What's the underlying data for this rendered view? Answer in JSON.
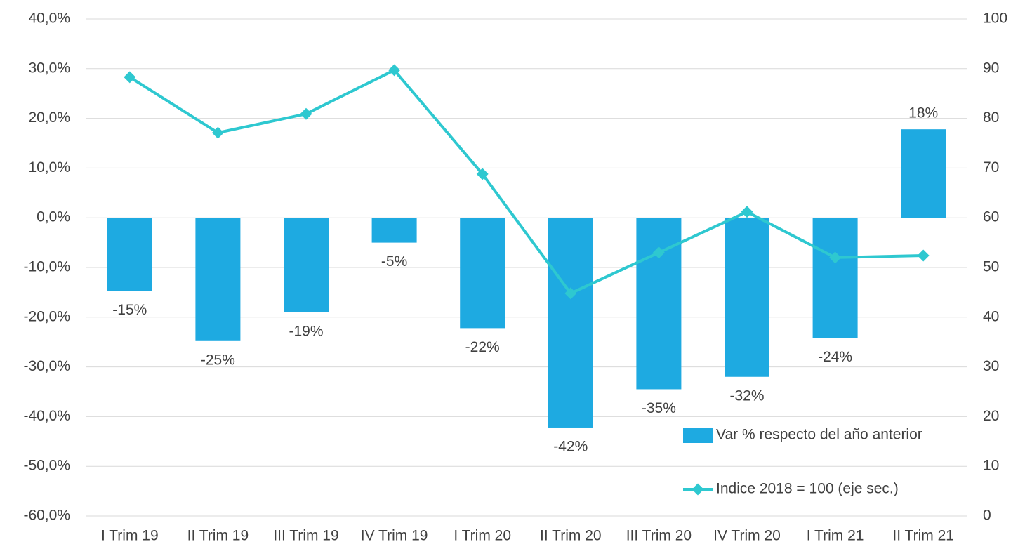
{
  "chart_data": {
    "type": "bar+line",
    "categories": [
      "I Trim 19",
      "II Trim 19",
      "III Trim 19",
      "IV Trim 19",
      "I Trim 20",
      "II Trim 20",
      "III Trim 20",
      "IV Trim 20",
      "I Trim 21",
      "II Trim 21"
    ],
    "series": [
      {
        "name": "Var % respecto del año anterior",
        "type": "bar",
        "color": "#1eaae1",
        "values": [
          -14.7,
          -24.8,
          -19.0,
          -5.0,
          -22.2,
          -42.2,
          -34.5,
          -32.0,
          -24.2,
          17.8
        ],
        "value_labels": [
          "-15%",
          "-25%",
          "-19%",
          "-5%",
          "-22%",
          "-42%",
          "-35%",
          "-32%",
          "-24%",
          "18%"
        ]
      },
      {
        "name": "Indice 2018 = 100 (eje sec.)",
        "type": "line",
        "axis": "y2",
        "color": "#2ec8d0",
        "values": [
          88.3,
          77.1,
          80.9,
          89.7,
          68.8,
          44.8,
          53.0,
          61.2,
          52.0,
          52.4
        ]
      }
    ],
    "ylim": [
      -60,
      40
    ],
    "yticks": [
      {
        "value": -60,
        "label": "-60,0%"
      },
      {
        "value": -50,
        "label": "-50,0%"
      },
      {
        "value": -40,
        "label": "-40,0%"
      },
      {
        "value": -30,
        "label": "-30,0%"
      },
      {
        "value": -20,
        "label": "-20,0%"
      },
      {
        "value": -10,
        "label": "-10,0%"
      },
      {
        "value": 0,
        "label": "0,0%"
      },
      {
        "value": 10,
        "label": "10,0%"
      },
      {
        "value": 20,
        "label": "20,0%"
      },
      {
        "value": 30,
        "label": "30,0%"
      },
      {
        "value": 40,
        "label": "40,0%"
      }
    ],
    "y2lim": [
      0,
      100
    ],
    "y2ticks": [
      0,
      10,
      20,
      30,
      40,
      50,
      60,
      70,
      80,
      90,
      100
    ],
    "grid": true,
    "legend": "lower right"
  }
}
